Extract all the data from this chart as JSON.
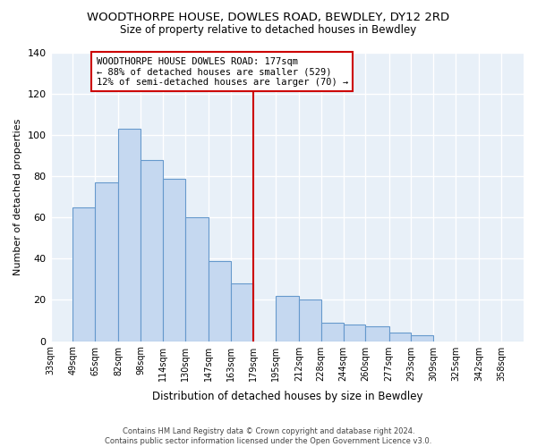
{
  "title": "WOODTHORPE HOUSE, DOWLES ROAD, BEWDLEY, DY12 2RD",
  "subtitle": "Size of property relative to detached houses in Bewdley",
  "xlabel": "Distribution of detached houses by size in Bewdley",
  "ylabel": "Number of detached properties",
  "bin_labels": [
    "33sqm",
    "49sqm",
    "65sqm",
    "82sqm",
    "98sqm",
    "114sqm",
    "130sqm",
    "147sqm",
    "163sqm",
    "179sqm",
    "195sqm",
    "212sqm",
    "228sqm",
    "244sqm",
    "260sqm",
    "277sqm",
    "293sqm",
    "309sqm",
    "325sqm",
    "342sqm",
    "358sqm"
  ],
  "bin_edges": [
    33,
    49,
    65,
    82,
    98,
    114,
    130,
    147,
    163,
    179,
    195,
    212,
    228,
    244,
    260,
    277,
    293,
    309,
    325,
    342,
    358,
    374
  ],
  "values": [
    0,
    65,
    77,
    103,
    88,
    79,
    60,
    39,
    28,
    0,
    22,
    20,
    9,
    8,
    7,
    4,
    3,
    0,
    0,
    0,
    0
  ],
  "property_line_x": 179,
  "annotation_title": "WOODTHORPE HOUSE DOWLES ROAD: 177sqm",
  "annotation_line1": "← 88% of detached houses are smaller (529)",
  "annotation_line2": "12% of semi-detached houses are larger (70) →",
  "bar_color": "#c5d8f0",
  "bar_edge_color": "#6699cc",
  "line_color": "#cc0000",
  "annotation_box_color": "#ffffff",
  "annotation_box_edge": "#cc0000",
  "plot_bg_color": "#e8f0f8",
  "background_color": "#ffffff",
  "grid_color": "#ffffff",
  "ylim": [
    0,
    140
  ],
  "footer_line1": "Contains HM Land Registry data © Crown copyright and database right 2024.",
  "footer_line2": "Contains public sector information licensed under the Open Government Licence v3.0."
}
